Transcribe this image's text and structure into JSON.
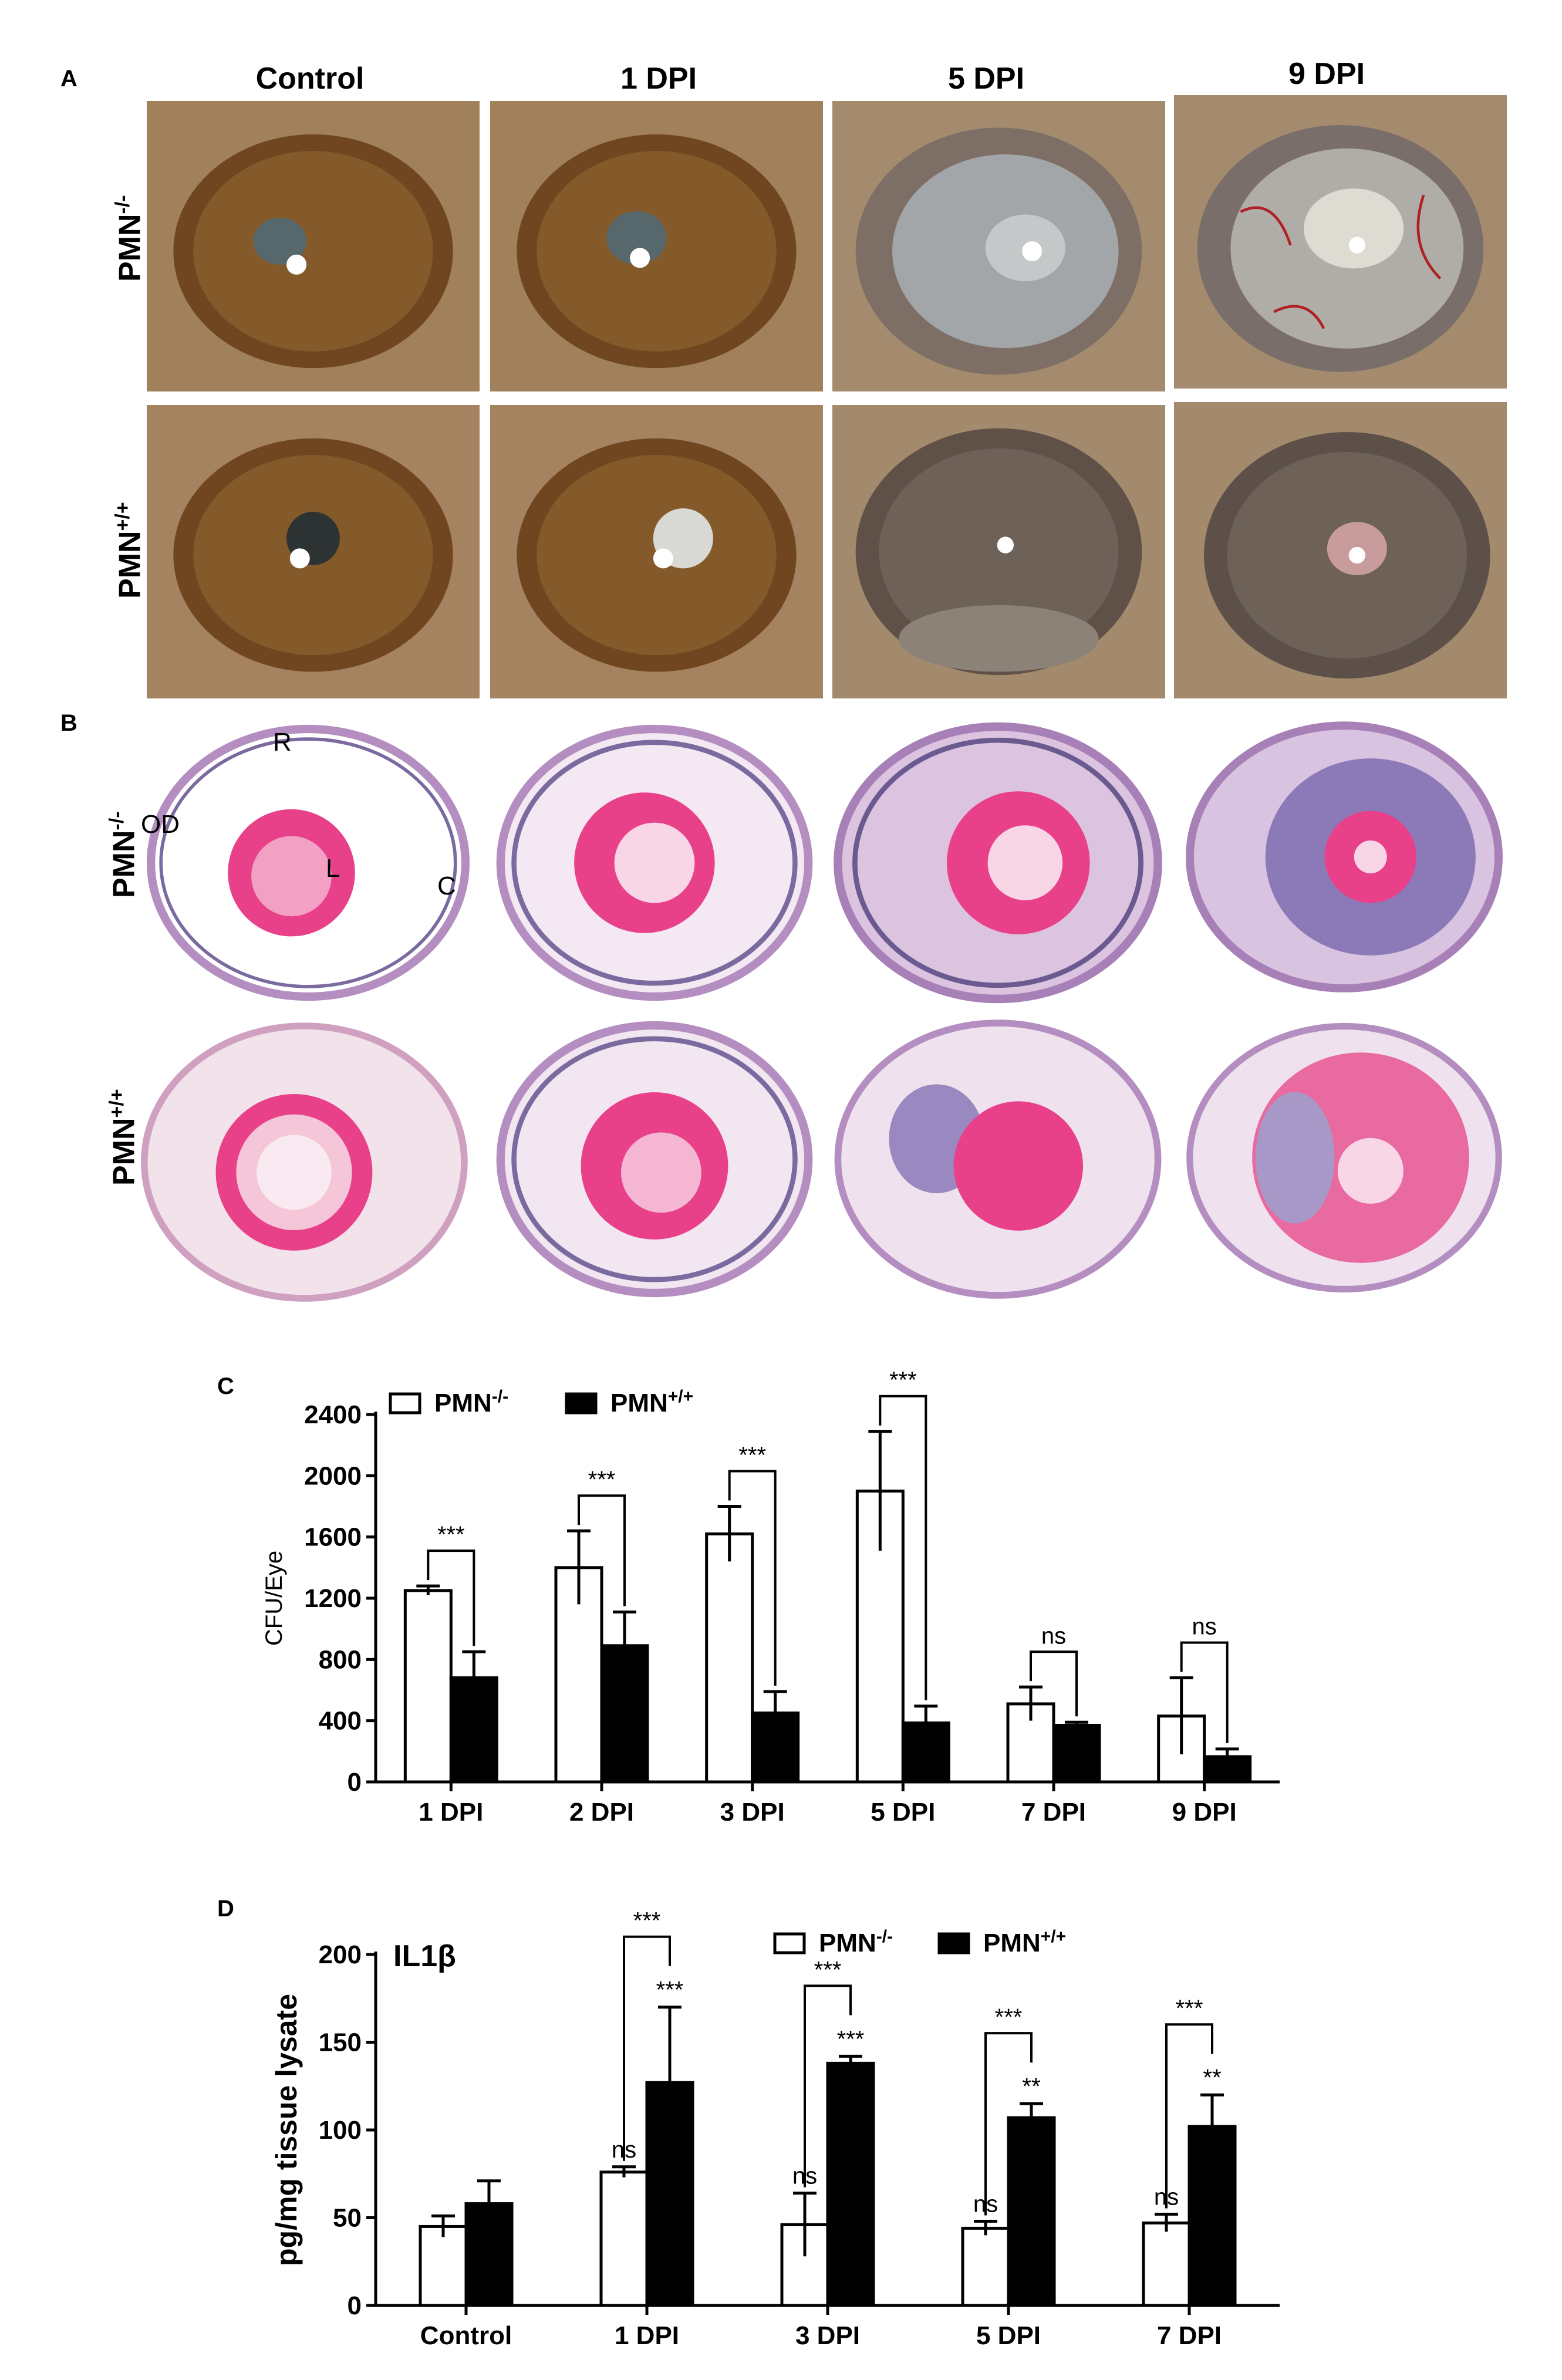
{
  "panel_a": {
    "letter": "A",
    "columns": [
      "Control",
      "1 DPI",
      "5 DPI",
      "9 DPI"
    ],
    "rows": [
      {
        "base": "PMN",
        "sup": "-/-"
      },
      {
        "base": "PMN",
        "sup": "+/+"
      }
    ]
  },
  "panel_b": {
    "letter": "B",
    "rows": [
      {
        "base": "PMN",
        "sup": "-/-"
      },
      {
        "base": "PMN",
        "sup": "+/+"
      }
    ],
    "annotations": {
      "retina": "R",
      "optic_disc": "OD",
      "lens": "L",
      "cornea": "C"
    }
  },
  "chart_data": [
    {
      "panel": "C",
      "type": "bar",
      "ylabel": "CFU/Eye",
      "xlabel": "",
      "ylim": [
        0,
        2400
      ],
      "yticks": [
        0,
        400,
        800,
        1200,
        1600,
        2000,
        2400
      ],
      "categories": [
        "1 DPI",
        "2 DPI",
        "3 DPI",
        "5 DPI",
        "7 DPI",
        "9 DPI"
      ],
      "legend": [
        {
          "base": "PMN",
          "sup": "-/-",
          "fill": "#ffffff"
        },
        {
          "base": "PMN",
          "sup": "+/+",
          "fill": "#000000"
        }
      ],
      "series": [
        {
          "values": [
            1250,
            1400,
            1620,
            1900,
            510,
            430
          ],
          "errors": [
            30,
            240,
            180,
            390,
            110,
            250
          ]
        },
        {
          "values": [
            680,
            890,
            450,
            385,
            370,
            165
          ],
          "errors": [
            170,
            220,
            140,
            110,
            20,
            50
          ]
        }
      ],
      "comparisons": [
        "***",
        "***",
        "***",
        "***",
        "ns",
        "ns"
      ]
    },
    {
      "panel": "D",
      "type": "bar",
      "title": "IL1β",
      "ylabel": "pg/mg tissue lysate",
      "xlabel": "",
      "ylim": [
        0,
        200
      ],
      "yticks": [
        0,
        50,
        100,
        150,
        200
      ],
      "categories": [
        "Control",
        "1 DPI",
        "3 DPI",
        "5 DPI",
        "7 DPI"
      ],
      "legend": [
        {
          "base": "PMN",
          "sup": "-/-",
          "fill": "#ffffff"
        },
        {
          "base": "PMN",
          "sup": "+/+",
          "fill": "#000000"
        }
      ],
      "series": [
        {
          "values": [
            45,
            76,
            46,
            44,
            47
          ],
          "errors": [
            6,
            3,
            18,
            4,
            5
          ],
          "labels": [
            "",
            "ns",
            "ns",
            "ns",
            "ns"
          ]
        },
        {
          "values": [
            58,
            127,
            138,
            107,
            102
          ],
          "errors": [
            13,
            43,
            4,
            8,
            18
          ],
          "labels": [
            "",
            "***",
            "***",
            "**",
            "**"
          ]
        }
      ],
      "comparisons": [
        "",
        "***",
        "***",
        "***",
        "***"
      ]
    }
  ],
  "colors": {
    "he_pink": "#e8418a",
    "he_purple": "#8c7ab8",
    "iris_brown": "#7a4e22",
    "fur": "#a98a66"
  }
}
